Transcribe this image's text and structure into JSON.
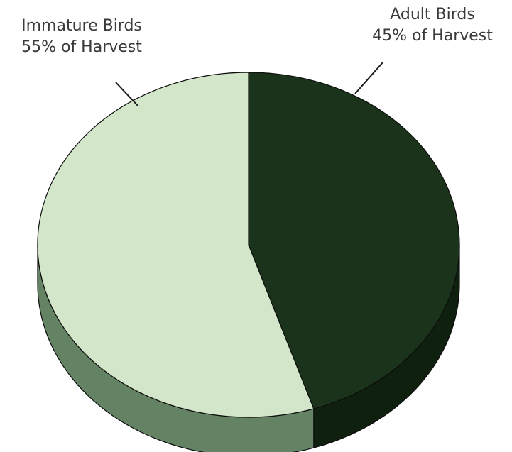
{
  "chart_data": {
    "type": "pie",
    "title": "",
    "slices": [
      {
        "name": "Adult Birds",
        "value": 45,
        "caption": "45% of Harvest",
        "color": "#1a331a",
        "side_color": "#10200f"
      },
      {
        "name": "Immature Birds",
        "value": 55,
        "caption": "55% of Harvest",
        "color": "#d3e6c9",
        "side_color": "#648264"
      }
    ],
    "start_angle": "12 o'clock, clockwise",
    "style": "3d-tilted"
  }
}
